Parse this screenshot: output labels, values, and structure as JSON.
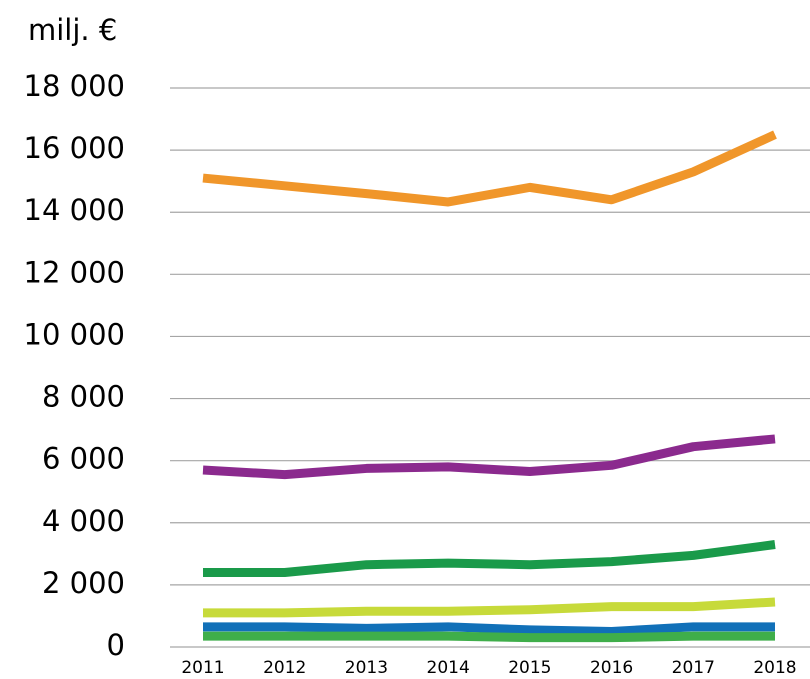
{
  "chart_data": {
    "type": "line",
    "ylabel": "milj. €",
    "categories": [
      "2011",
      "2012",
      "2013",
      "2014",
      "2015",
      "2016",
      "2017",
      "2018"
    ],
    "series": [
      {
        "color": "#f0962a",
        "values": [
          15100,
          14850,
          14600,
          14330,
          14800,
          14400,
          15300,
          16500
        ]
      },
      {
        "color": "#8b2a8e",
        "values": [
          5700,
          5550,
          5750,
          5800,
          5650,
          5850,
          6450,
          6700
        ]
      },
      {
        "color": "#1a9a4a",
        "values": [
          2400,
          2400,
          2650,
          2700,
          2650,
          2750,
          2950,
          3300
        ]
      },
      {
        "color": "#c7da3a",
        "values": [
          1100,
          1100,
          1150,
          1150,
          1200,
          1300,
          1300,
          1450
        ]
      },
      {
        "color": "#1170b8",
        "values": [
          650,
          650,
          600,
          650,
          550,
          500,
          650,
          650
        ]
      },
      {
        "color": "#3fae4a",
        "values": [
          350,
          350,
          350,
          350,
          300,
          300,
          350,
          350
        ]
      }
    ],
    "ylim": [
      0,
      18000
    ],
    "yticks": [
      0,
      {
        "value": 2000,
        "label": "2 000"
      },
      {
        "value": 4000,
        "label": "4 000"
      },
      {
        "value": 6000,
        "label": "6 000"
      },
      {
        "value": 8000,
        "label": "8 000"
      },
      {
        "value": 10000,
        "label": "10 000"
      },
      {
        "value": 12000,
        "label": "12 000"
      },
      {
        "value": 14000,
        "label": "14 000"
      },
      {
        "value": 16000,
        "label": "16 000"
      },
      {
        "value": 18000,
        "label": "18 000"
      }
    ],
    "grid": true
  }
}
